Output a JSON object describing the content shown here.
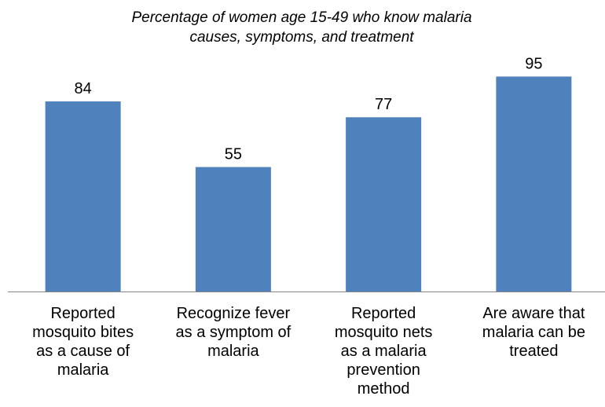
{
  "chart_data": {
    "type": "bar",
    "title_lines": [
      "Percentage of women age 15-49 who know malaria",
      "causes, symptoms, and treatment"
    ],
    "categories": [
      [
        "Reported",
        "mosquito bites",
        "as a cause of",
        "malaria"
      ],
      [
        "Recognize fever",
        "as a symptom of",
        "malaria"
      ],
      [
        "Reported",
        "mosquito nets",
        "as a malaria",
        "prevention",
        "method"
      ],
      [
        "Are aware that",
        "malaria can be",
        "treated"
      ]
    ],
    "values": [
      84,
      55,
      77,
      95
    ],
    "value_labels": [
      "84",
      "55",
      "77",
      "95"
    ],
    "ylim": [
      0,
      100
    ],
    "grid": false,
    "legend": "none",
    "colors": {
      "bar": "#4F81BD",
      "axis": "#868686",
      "text": "#000000"
    }
  }
}
